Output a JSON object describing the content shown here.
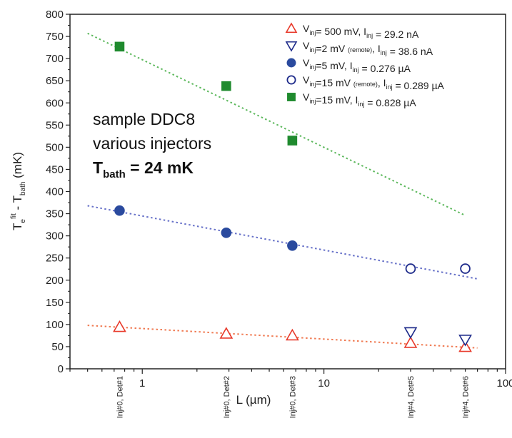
{
  "chart_data": {
    "type": "scatter",
    "xscale": "log",
    "xlim": [
      0.4,
      100
    ],
    "ylim": [
      0,
      800
    ],
    "ylabel": {
      "main": "T",
      "sub1": "e",
      "sup": "fit",
      "mid": " - T",
      "sub2": "bath",
      "unit": " (mK)"
    },
    "xlabel": "L (µm)",
    "x_ticks": [
      {
        "value": 1,
        "label": "1"
      },
      {
        "value": 10,
        "label": "10"
      },
      {
        "value": 100,
        "label": "100"
      }
    ],
    "y_ticks": [
      0,
      50,
      100,
      150,
      200,
      250,
      300,
      350,
      400,
      450,
      500,
      550,
      600,
      650,
      700,
      750,
      800
    ],
    "detector_labels": [
      {
        "x": 0.75,
        "label": "Inj#0, Det#1"
      },
      {
        "x": 2.9,
        "label": "Inj#0, Det#2"
      },
      {
        "x": 6.7,
        "label": "Inj#0, Det#3"
      },
      {
        "x": 30,
        "label": "Inj#4, Det#5"
      },
      {
        "x": 60,
        "label": "Inj#4, Det#6"
      }
    ],
    "annotation": {
      "line1": "sample DDC8",
      "line2": "various injectors",
      "line3_main": "T",
      "line3_sub": "bath",
      "line3_rest": " = 24 mK"
    },
    "series": [
      {
        "name": "Vinj= 500 mV, Iinj = 29.2 nA",
        "legend": [
          {
            "t": "V"
          },
          {
            "t": "inj",
            "sub": true
          },
          {
            "t": "= 500 mV, I"
          },
          {
            "t": "inj",
            "sub": true
          },
          {
            "t": " = 29.2 nA"
          }
        ],
        "marker": "triangle-up-open",
        "color": "#e8392a",
        "x": [
          0.75,
          2.9,
          6.7,
          30,
          60
        ],
        "y": [
          94,
          79,
          75,
          58,
          49
        ]
      },
      {
        "name": "Vinj=2 mV (remote), Iinj = 38.6 nA",
        "legend": [
          {
            "t": "V"
          },
          {
            "t": "inj",
            "sub": true
          },
          {
            "t": "=2 mV "
          },
          {
            "t": "(remote)",
            "small": true
          },
          {
            "t": ", I"
          },
          {
            "t": "inj",
            "sub": true
          },
          {
            "t": " = 38.6 nA"
          }
        ],
        "marker": "triangle-down-open",
        "color": "#1d2a8a",
        "x": [
          30,
          60
        ],
        "y": [
          83,
          66
        ]
      },
      {
        "name": "Vinj=5 mV, Iinj = 0.276 µA",
        "legend": [
          {
            "t": "V"
          },
          {
            "t": "inj",
            "sub": true
          },
          {
            "t": "=5 mV, I"
          },
          {
            "t": "inj",
            "sub": true
          },
          {
            "t": " = 0.276 µA"
          }
        ],
        "marker": "circle-filled",
        "color": "#2a4a9e",
        "x": [
          0.75,
          2.9,
          6.7
        ],
        "y": [
          357,
          307,
          278
        ]
      },
      {
        "name": "Vinj=15 mV (remote), Iinj = 0.289 µA",
        "legend": [
          {
            "t": "V"
          },
          {
            "t": "inj",
            "sub": true
          },
          {
            "t": "=15 mV "
          },
          {
            "t": "(remote)",
            "small": true
          },
          {
            "t": ", I"
          },
          {
            "t": "inj",
            "sub": true
          },
          {
            "t": " = 0.289 µA"
          }
        ],
        "marker": "circle-open",
        "color": "#1d2a8a",
        "x": [
          30,
          60
        ],
        "y": [
          226,
          226
        ]
      },
      {
        "name": "Vinj=15 mV, Iinj = 0.828 µA",
        "legend": [
          {
            "t": "V"
          },
          {
            "t": "inj",
            "sub": true
          },
          {
            "t": "=15 mV, I"
          },
          {
            "t": "inj",
            "sub": true
          },
          {
            "t": " = 0.828 µA"
          }
        ],
        "marker": "square-filled",
        "color": "#1f8a2e",
        "x": [
          0.75,
          2.9,
          6.7
        ],
        "y": [
          727,
          638,
          515
        ]
      }
    ],
    "fit_lines": [
      {
        "color": "#f07a52",
        "x": [
          0.5,
          70
        ],
        "y": [
          98,
          47
        ]
      },
      {
        "color": "#6670c8",
        "x": [
          0.5,
          70
        ],
        "y": [
          368,
          203
        ]
      },
      {
        "color": "#5cb85c",
        "x": [
          0.5,
          60
        ],
        "y": [
          757,
          346
        ]
      }
    ],
    "legend_position": "top-right",
    "grid": false
  }
}
